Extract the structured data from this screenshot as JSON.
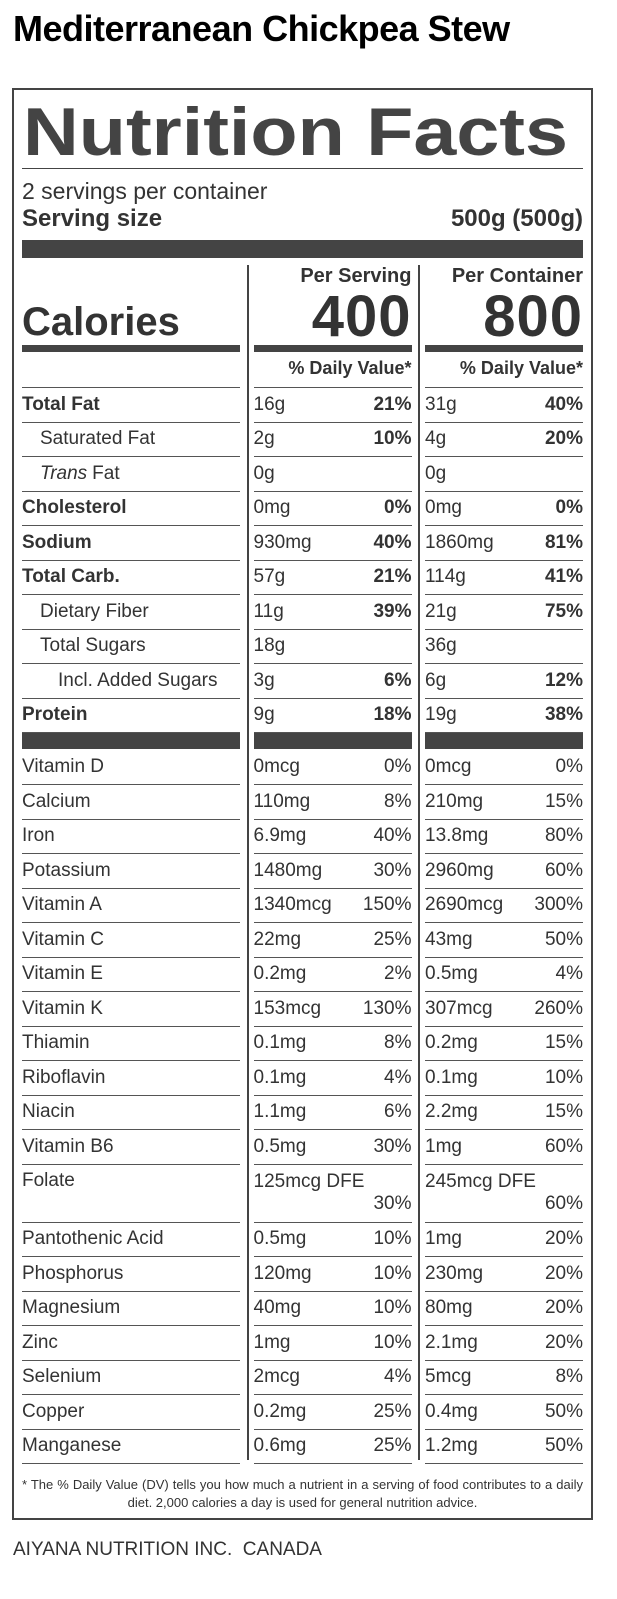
{
  "title": "Mediterranean Chickpea Stew",
  "label": {
    "heading": "Nutrition Facts",
    "servings": "2 servings per container",
    "serving_size_label": "Serving size",
    "serving_size": "500g (500g)",
    "calories_label": "Calories",
    "columns": [
      {
        "heading": "Per Serving",
        "calories": "400",
        "dv_header": "% Daily Value*"
      },
      {
        "heading": "Per Container",
        "calories": "800",
        "dv_header": "% Daily Value*"
      }
    ],
    "macros": [
      {
        "name": "Total Fat",
        "bold": true,
        "indent": 0,
        "per_serving": {
          "amount": "16g",
          "dv": "21%"
        },
        "per_container": {
          "amount": "31g",
          "dv": "40%"
        }
      },
      {
        "name": "Saturated Fat",
        "bold": false,
        "indent": 1,
        "per_serving": {
          "amount": "2g",
          "dv": "10%"
        },
        "per_container": {
          "amount": "4g",
          "dv": "20%"
        }
      },
      {
        "name_italic": "Trans",
        "name": "Fat",
        "bold": false,
        "indent": 1,
        "per_serving": {
          "amount": "0g",
          "dv": null
        },
        "per_container": {
          "amount": "0g",
          "dv": null
        }
      },
      {
        "name": "Cholesterol",
        "bold": true,
        "indent": 0,
        "per_serving": {
          "amount": "0mg",
          "dv": "0%"
        },
        "per_container": {
          "amount": "0mg",
          "dv": "0%"
        }
      },
      {
        "name": "Sodium",
        "bold": true,
        "indent": 0,
        "per_serving": {
          "amount": "930mg",
          "dv": "40%"
        },
        "per_container": {
          "amount": "1860mg",
          "dv": "81%"
        }
      },
      {
        "name": "Total Carb.",
        "bold": true,
        "indent": 0,
        "per_serving": {
          "amount": "57g",
          "dv": "21%"
        },
        "per_container": {
          "amount": "114g",
          "dv": "41%"
        }
      },
      {
        "name": "Dietary Fiber",
        "bold": false,
        "indent": 1,
        "per_serving": {
          "amount": "11g",
          "dv": "39%"
        },
        "per_container": {
          "amount": "21g",
          "dv": "75%"
        }
      },
      {
        "name": "Total Sugars",
        "bold": false,
        "indent": 1,
        "per_serving": {
          "amount": "18g",
          "dv": null
        },
        "per_container": {
          "amount": "36g",
          "dv": null
        }
      },
      {
        "name": "Incl. Added Sugars",
        "bold": false,
        "indent": 2,
        "per_serving": {
          "amount": "3g",
          "dv": "6%"
        },
        "per_container": {
          "amount": "6g",
          "dv": "12%"
        }
      },
      {
        "name": "Protein",
        "bold": true,
        "indent": 0,
        "per_serving": {
          "amount": "9g",
          "dv": "18%"
        },
        "per_container": {
          "amount": "19g",
          "dv": "38%"
        }
      }
    ],
    "micros": [
      {
        "name": "Vitamin D",
        "per_serving": {
          "amount": "0mcg",
          "dv": "0%"
        },
        "per_container": {
          "amount": "0mcg",
          "dv": "0%"
        }
      },
      {
        "name": "Calcium",
        "per_serving": {
          "amount": "110mg",
          "dv": "8%"
        },
        "per_container": {
          "amount": "210mg",
          "dv": "15%"
        }
      },
      {
        "name": "Iron",
        "per_serving": {
          "amount": "6.9mg",
          "dv": "40%"
        },
        "per_container": {
          "amount": "13.8mg",
          "dv": "80%"
        }
      },
      {
        "name": "Potassium",
        "per_serving": {
          "amount": "1480mg",
          "dv": "30%"
        },
        "per_container": {
          "amount": "2960mg",
          "dv": "60%"
        }
      },
      {
        "name": "Vitamin A",
        "per_serving": {
          "amount": "1340mcg",
          "dv": "150%"
        },
        "per_container": {
          "amount": "2690mcg",
          "dv": "300%"
        }
      },
      {
        "name": "Vitamin C",
        "per_serving": {
          "amount": "22mg",
          "dv": "25%"
        },
        "per_container": {
          "amount": "43mg",
          "dv": "50%"
        }
      },
      {
        "name": "Vitamin E",
        "per_serving": {
          "amount": "0.2mg",
          "dv": "2%"
        },
        "per_container": {
          "amount": "0.5mg",
          "dv": "4%"
        }
      },
      {
        "name": "Vitamin K",
        "per_serving": {
          "amount": "153mcg",
          "dv": "130%"
        },
        "per_container": {
          "amount": "307mcg",
          "dv": "260%"
        }
      },
      {
        "name": "Thiamin",
        "per_serving": {
          "amount": "0.1mg",
          "dv": "8%"
        },
        "per_container": {
          "amount": "0.2mg",
          "dv": "15%"
        }
      },
      {
        "name": "Riboflavin",
        "per_serving": {
          "amount": "0.1mg",
          "dv": "4%"
        },
        "per_container": {
          "amount": "0.1mg",
          "dv": "10%"
        }
      },
      {
        "name": "Niacin",
        "per_serving": {
          "amount": "1.1mg",
          "dv": "6%"
        },
        "per_container": {
          "amount": "2.2mg",
          "dv": "15%"
        }
      },
      {
        "name": "Vitamin B6",
        "per_serving": {
          "amount": "0.5mg",
          "dv": "30%"
        },
        "per_container": {
          "amount": "1mg",
          "dv": "60%"
        }
      },
      {
        "name": "Folate",
        "per_serving": {
          "amount": "125mcg DFE",
          "dv": "30%"
        },
        "per_container": {
          "amount": "245mcg DFE",
          "dv": "60%"
        }
      },
      {
        "name": "Pantothenic Acid",
        "per_serving": {
          "amount": "0.5mg",
          "dv": "10%"
        },
        "per_container": {
          "amount": "1mg",
          "dv": "20%"
        }
      },
      {
        "name": "Phosphorus",
        "per_serving": {
          "amount": "120mg",
          "dv": "10%"
        },
        "per_container": {
          "amount": "230mg",
          "dv": "20%"
        }
      },
      {
        "name": "Magnesium",
        "per_serving": {
          "amount": "40mg",
          "dv": "10%"
        },
        "per_container": {
          "amount": "80mg",
          "dv": "20%"
        }
      },
      {
        "name": "Zinc",
        "per_serving": {
          "amount": "1mg",
          "dv": "10%"
        },
        "per_container": {
          "amount": "2.1mg",
          "dv": "20%"
        }
      },
      {
        "name": "Selenium",
        "per_serving": {
          "amount": "2mcg",
          "dv": "4%"
        },
        "per_container": {
          "amount": "5mcg",
          "dv": "8%"
        }
      },
      {
        "name": "Copper",
        "per_serving": {
          "amount": "0.2mg",
          "dv": "25%"
        },
        "per_container": {
          "amount": "0.4mg",
          "dv": "50%"
        }
      },
      {
        "name": "Manganese",
        "per_serving": {
          "amount": "0.6mg",
          "dv": "25%"
        },
        "per_container": {
          "amount": "1.2mg",
          "dv": "50%"
        }
      }
    ],
    "footnote": "* The % Daily Value (DV) tells you how much a nutrient in a serving of food contributes to a daily diet. 2,000 calories a day is used for general nutrition advice."
  },
  "footer": {
    "company": "AIYANA NUTRITION INC.",
    "country": "CANADA"
  }
}
